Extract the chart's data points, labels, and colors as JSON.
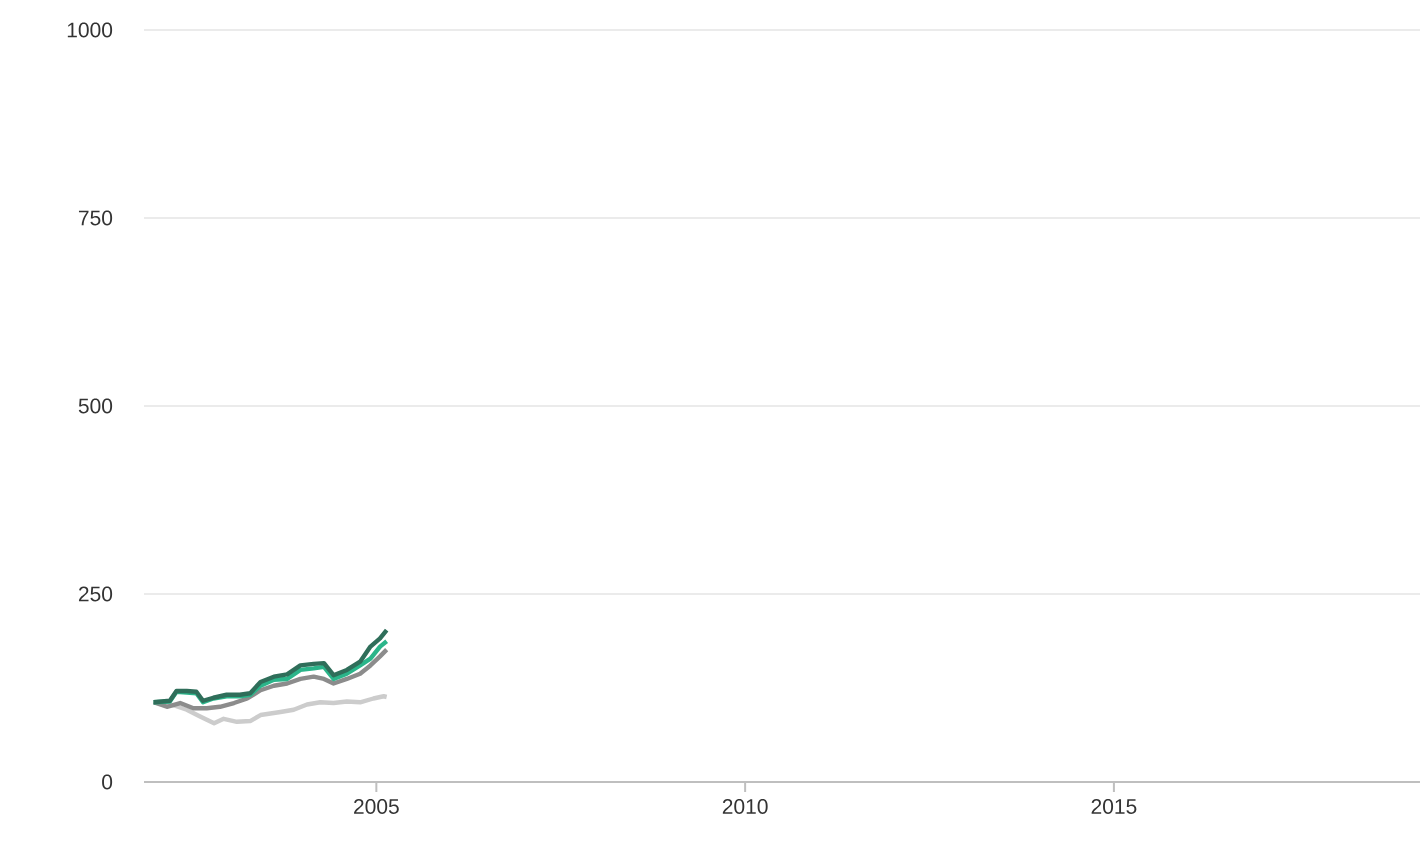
{
  "chart_data": {
    "type": "line",
    "xlim": [
      2001.85,
      2019.15
    ],
    "ylim": [
      0,
      1000
    ],
    "xticks": [
      2005,
      2010,
      2015
    ],
    "yticks": [
      0,
      250,
      500,
      750,
      1000
    ],
    "grid": "y",
    "line_style": "solid",
    "series": [
      {
        "color": "#cccccc",
        "x": [
          2001.98,
          2002.25,
          2002.43,
          2002.61,
          2002.8,
          2002.93,
          2003.11,
          2003.29,
          2003.43,
          2003.7,
          2003.88,
          2004.06,
          2004.24,
          2004.42,
          2004.6,
          2004.78,
          2004.96,
          2005.1,
          2005.14
        ],
        "values": [
          106,
          102,
          96,
          87,
          78,
          84,
          80,
          81,
          89,
          93,
          96,
          103,
          106,
          105,
          107,
          106,
          111,
          114,
          113
        ]
      },
      {
        "color": "#8c8c8c",
        "x": [
          2001.98,
          2002.16,
          2002.34,
          2002.52,
          2002.7,
          2002.88,
          2003.07,
          2003.25,
          2003.43,
          2003.61,
          2003.79,
          2003.97,
          2004.15,
          2004.29,
          2004.42,
          2004.6,
          2004.78,
          2004.92,
          2005.05,
          2005.14
        ],
        "values": [
          106,
          100,
          105,
          98,
          98,
          100,
          105,
          111,
          122,
          128,
          131,
          137,
          140,
          137,
          131,
          137,
          144,
          155,
          167,
          176
        ]
      },
      {
        "color": "#2bb58a",
        "x": [
          2001.98,
          2002.2,
          2002.29,
          2002.43,
          2002.56,
          2002.65,
          2002.79,
          2002.97,
          2003.15,
          2003.29,
          2003.43,
          2003.61,
          2003.79,
          2003.97,
          2004.15,
          2004.29,
          2004.42,
          2004.6,
          2004.78,
          2004.92,
          2005.05,
          2005.14
        ],
        "values": [
          106,
          107,
          120,
          119,
          118,
          106,
          111,
          114,
          114,
          116,
          128,
          136,
          137,
          149,
          151,
          153,
          137,
          144,
          155,
          164,
          180,
          187
        ]
      },
      {
        "color": "#2f6e5a",
        "x": [
          2001.98,
          2002.2,
          2002.29,
          2002.43,
          2002.56,
          2002.65,
          2002.79,
          2002.97,
          2003.15,
          2003.29,
          2003.43,
          2003.61,
          2003.79,
          2003.97,
          2004.15,
          2004.29,
          2004.42,
          2004.6,
          2004.78,
          2004.92,
          2005.05,
          2005.14
        ],
        "values": [
          106,
          108,
          121,
          121,
          120,
          108,
          112,
          116,
          116,
          118,
          133,
          140,
          143,
          155,
          157,
          158,
          142,
          149,
          160,
          180,
          191,
          202
        ]
      }
    ]
  }
}
